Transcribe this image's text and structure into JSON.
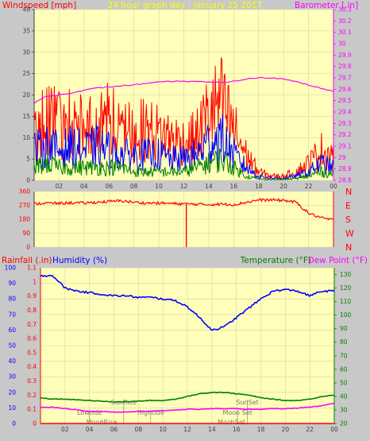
{
  "header": {
    "left": "Windspeed [mph]",
    "center": "24 hour graph day - January 25 2017",
    "right": "Barometer [.in]"
  },
  "colors": {
    "bg": "#c8c8c8",
    "plot_bg": "#ffffb9",
    "grid": "#d2d2b4",
    "red": "#ff0000",
    "blue": "#0000ff",
    "green": "#008000",
    "magenta": "#ff00ff",
    "axis_left": "#404040",
    "axis_right": "#008000"
  },
  "x_axis": {
    "labels": [
      "02",
      "04",
      "06",
      "08",
      "10",
      "12",
      "14",
      "16",
      "18",
      "20",
      "22",
      "00"
    ],
    "label_hours": [
      2,
      4,
      6,
      8,
      10,
      12,
      14,
      16,
      18,
      20,
      22,
      24
    ]
  },
  "chart_data": [
    {
      "name": "wind_barometer",
      "type": "line",
      "xlabel": "",
      "y_label_left": "Windspeed [mph]",
      "y_label_right": "Barometer [.in]",
      "ylim_left": [
        0,
        40
      ],
      "yticks_left": [
        "0",
        "5",
        "10",
        "15",
        "20",
        "25",
        "30",
        "35",
        "40"
      ],
      "ylim_right": [
        28.8,
        30.3
      ],
      "yticks_right": [
        "28.8",
        "28.9",
        "29",
        "29.1",
        "29.2",
        "29.3",
        "29.4",
        "29.5",
        "29.6",
        "29.7",
        "29.8",
        "29.9",
        "30",
        "30.1",
        "30.2",
        "30.3"
      ],
      "hours": [
        0,
        1,
        2,
        3,
        4,
        5,
        6,
        7,
        8,
        9,
        10,
        11,
        12,
        13,
        14,
        15,
        16,
        17,
        18,
        19,
        20,
        21,
        22,
        23,
        24
      ],
      "series": [
        {
          "name": "gust",
          "axis": "left",
          "color": "#ff0000",
          "values": [
            12,
            14,
            13,
            14,
            12,
            13,
            14,
            12,
            11,
            12,
            11,
            10,
            9,
            10,
            16,
            18,
            12,
            6,
            2,
            1,
            1,
            2,
            4,
            7,
            6
          ]
        },
        {
          "name": "average",
          "axis": "left",
          "color": "#0000ff",
          "values": [
            7,
            8,
            7,
            8,
            7,
            8,
            7,
            6,
            6,
            6,
            6,
            5,
            5,
            6,
            9,
            10,
            6,
            3,
            1,
            0.5,
            0.5,
            1,
            2,
            4,
            3
          ]
        },
        {
          "name": "low",
          "axis": "left",
          "color": "#008000",
          "values": [
            3,
            4,
            3,
            3,
            3,
            3,
            3,
            3,
            2,
            2,
            2,
            2,
            2,
            3,
            4,
            5,
            3,
            1,
            0.3,
            0.2,
            0.2,
            0.4,
            1,
            2,
            1.5
          ]
        },
        {
          "name": "barometer",
          "axis": "right",
          "color": "#ff00ff",
          "values": [
            29.48,
            29.54,
            29.55,
            29.57,
            29.59,
            29.61,
            29.62,
            29.63,
            29.64,
            29.65,
            29.66,
            29.67,
            29.67,
            29.67,
            29.66,
            29.66,
            29.67,
            29.69,
            29.7,
            29.7,
            29.69,
            29.67,
            29.64,
            29.61,
            29.58
          ]
        }
      ]
    },
    {
      "name": "wind_direction",
      "type": "line",
      "xlabel": "",
      "ylim": [
        0,
        360
      ],
      "yticks": [
        "0",
        "90",
        "180",
        "270",
        "360"
      ],
      "right_labels": [
        "N",
        "W",
        "S",
        "E",
        "N"
      ],
      "hours": [
        0,
        1,
        2,
        3,
        4,
        5,
        6,
        7,
        8,
        9,
        10,
        11,
        12,
        13,
        14,
        15,
        16,
        17,
        18,
        19,
        20,
        21,
        22,
        23,
        24
      ],
      "series": [
        {
          "name": "direction",
          "color": "#ff0000",
          "values": [
            280,
            285,
            283,
            287,
            285,
            290,
            295,
            300,
            290,
            285,
            285,
            282,
            280,
            278,
            275,
            278,
            275,
            290,
            305,
            305,
            303,
            290,
            220,
            190,
            175
          ]
        }
      ],
      "spike": {
        "hour": 12.2,
        "value": 0
      }
    },
    {
      "name": "weather",
      "type": "line",
      "xlabel": "",
      "y_label_left_1": "Rainfall (.in)",
      "y_label_left_2": "Humidity (%)",
      "y_label_right_1": "Temperature (°F)",
      "y_label_right_2": "Dew Point (°F)",
      "ylim_humidity": [
        0,
        100
      ],
      "yticks_humidity": [
        "0",
        "10",
        "20",
        "30",
        "40",
        "50",
        "60",
        "70",
        "80",
        "90",
        "100"
      ],
      "ylim_rain": [
        0,
        1.1
      ],
      "yticks_rain": [
        "0",
        "0.1",
        "0.2",
        "0.3",
        "0.4",
        "0.5",
        "0.6",
        "0.7",
        "0.8",
        "0.9",
        "1",
        "1.1"
      ],
      "ylim_temp": [
        20,
        135
      ],
      "yticks_temp": [
        "20",
        "30",
        "40",
        "50",
        "60",
        "70",
        "80",
        "90",
        "100",
        "110",
        "120",
        "130"
      ],
      "hours": [
        0,
        1,
        2,
        3,
        4,
        5,
        6,
        7,
        8,
        9,
        10,
        11,
        12,
        13,
        14,
        15,
        16,
        17,
        18,
        19,
        20,
        21,
        22,
        23,
        24
      ],
      "series": [
        {
          "name": "humidity",
          "axis": "humidity",
          "color": "#0000ff",
          "values": [
            95,
            95,
            87,
            85,
            84,
            83,
            82,
            82,
            81,
            81,
            80,
            79,
            75,
            68,
            60,
            62,
            68,
            74,
            80,
            85,
            86,
            85,
            82,
            85,
            85
          ]
        },
        {
          "name": "temperature",
          "axis": "temp",
          "color": "#008000",
          "values": [
            39,
            38,
            38,
            37.5,
            37,
            36.5,
            36,
            36,
            36.5,
            37,
            37,
            38,
            40,
            42,
            43,
            43,
            42,
            41,
            39,
            38,
            37,
            37,
            38,
            40,
            41
          ]
        },
        {
          "name": "dew_point",
          "axis": "temp",
          "color": "#ff00ff",
          "values": [
            32,
            32,
            31,
            30,
            29,
            29,
            28.5,
            28.5,
            29,
            29,
            29.5,
            30,
            30.5,
            30.5,
            31,
            31,
            31,
            30.5,
            30.5,
            31,
            31,
            31.5,
            32,
            33,
            35
          ]
        },
        {
          "name": "rainfall",
          "axis": "rain",
          "color": "#ff0000",
          "values": [
            0,
            0,
            0,
            0,
            0,
            0,
            0,
            0,
            0,
            0,
            0,
            0,
            0,
            0,
            0,
            0,
            0,
            0,
            0,
            0,
            0,
            0,
            0,
            0,
            0
          ]
        }
      ],
      "astro": [
        {
          "text": "SunRise",
          "hour": 6.8,
          "row": 0
        },
        {
          "text": "Lowtide",
          "hour": 4.0,
          "row": 1
        },
        {
          "text": "Hightide",
          "hour": 9.0,
          "row": 1
        },
        {
          "text": "MoonRise",
          "hour": 5.0,
          "row": 2
        },
        {
          "text": "SunSet",
          "hour": 16.9,
          "row": 0
        },
        {
          "text": "Moon Set",
          "hour": 16.1,
          "row": 1
        },
        {
          "text": "MoonSet",
          "hour": 15.6,
          "row": 2
        }
      ]
    }
  ]
}
